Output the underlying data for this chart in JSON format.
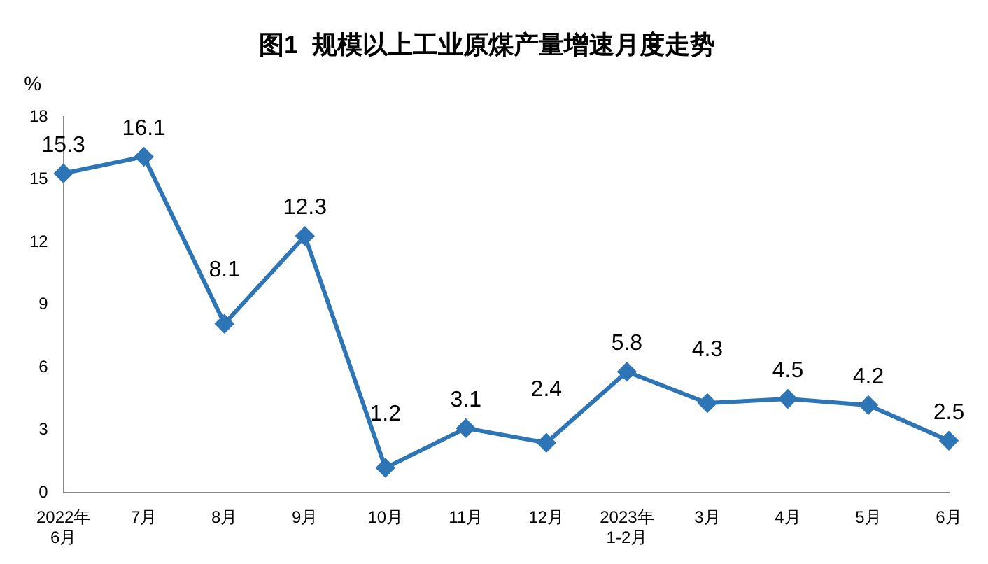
{
  "chart_data": {
    "type": "line",
    "title": "图1  规模以上工业原煤产量增速月度走势",
    "ylabel": "%",
    "categories": [
      "2022年\n6月",
      "7月",
      "8月",
      "9月",
      "10月",
      "11月",
      "12月",
      "2023年\n1-2月",
      "3月",
      "4月",
      "5月",
      "6月"
    ],
    "series": [
      {
        "color": "#2e75b6",
        "values": [
          15.3,
          16.1,
          8.1,
          12.3,
          1.2,
          3.1,
          2.4,
          5.8,
          4.3,
          4.5,
          4.2,
          2.5
        ]
      }
    ],
    "ylim": [
      0,
      18
    ],
    "yticks": [
      0,
      3,
      6,
      9,
      12,
      15,
      18
    ],
    "grid": false,
    "legend": false,
    "marker": "diamond",
    "line_style": "solid",
    "data_labels": true
  }
}
